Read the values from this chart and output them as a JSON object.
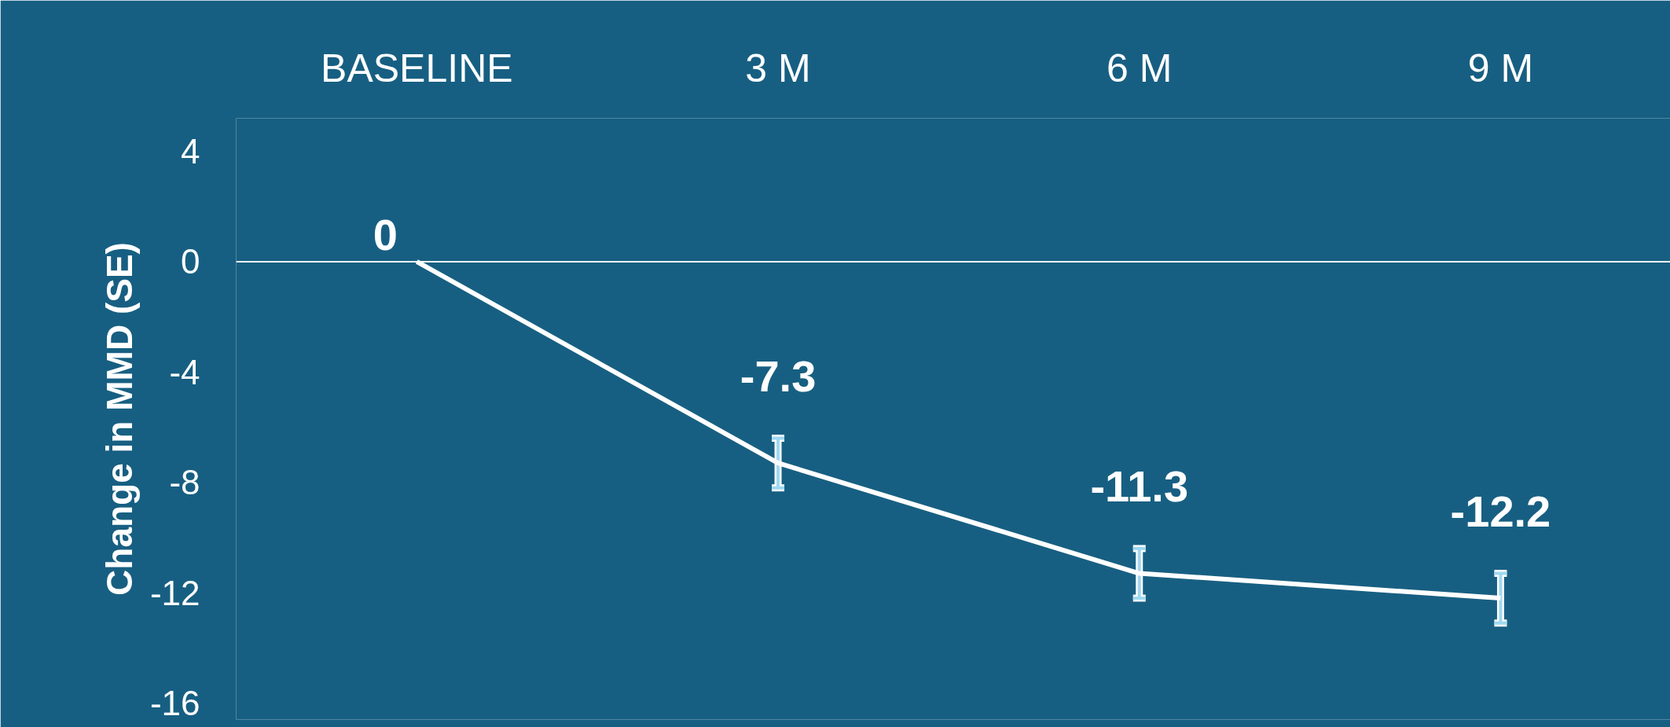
{
  "chart_data": {
    "type": "line",
    "ylabel": "Change in MMD (SE)",
    "categories": [
      "BASELINE",
      "3 M",
      "6 M",
      "9 M"
    ],
    "series": [
      {
        "color": "#ffffff",
        "values": [
          0,
          -7.3,
          -11.3,
          -12.2
        ],
        "errors": [
          null,
          0.9,
          0.9,
          0.9
        ]
      }
    ],
    "ylim": [
      -16.6,
      5.2
    ],
    "yticks": [
      4,
      0,
      -4,
      -8,
      -12,
      -16
    ],
    "ref_lines": [
      {
        "axis": "y",
        "value": 0,
        "color": "#ffffff"
      }
    ],
    "data_labels": true,
    "grid": false,
    "marker": "none",
    "line_style": "solid"
  }
}
